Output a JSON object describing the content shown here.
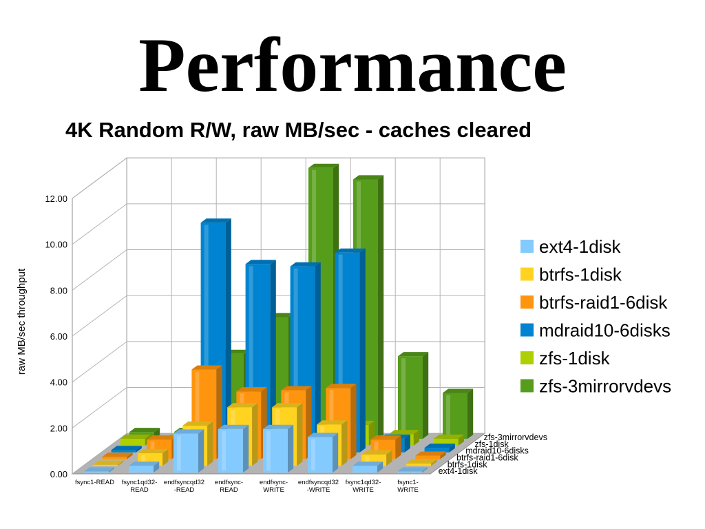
{
  "slide": {
    "title": "Performance"
  },
  "chart_data": {
    "type": "bar",
    "subtype": "3d-grouped-bar",
    "title": "4K Random R/W, raw MB/sec - caches cleared",
    "ylabel": "raw MB/sec throughput",
    "ylim": [
      0,
      12
    ],
    "yticks": [
      "0.00",
      "2.00",
      "4.00",
      "6.00",
      "8.00",
      "10.00",
      "12.00"
    ],
    "grid": true,
    "legend_position": "right",
    "categories": [
      [
        "fsync1-READ"
      ],
      [
        "fsync1qd32-",
        "READ"
      ],
      [
        "endfsyncqd32",
        "-READ"
      ],
      [
        "endfsync-",
        "READ"
      ],
      [
        "endfsync-",
        "WRITE"
      ],
      [
        "endfsyncqd32",
        "-WRITE"
      ],
      [
        "fsync1qd32-",
        "WRITE"
      ],
      [
        "fsync1-",
        "WRITE"
      ]
    ],
    "series": [
      {
        "name": "ext4-1disk",
        "color": "#83caff",
        "values": [
          0.05,
          0.3,
          1.7,
          1.9,
          1.9,
          1.55,
          0.3,
          0.05
        ]
      },
      {
        "name": "btrfs-1disk",
        "color": "#ffd320",
        "values": [
          0.05,
          0.55,
          1.75,
          2.55,
          2.55,
          1.8,
          0.5,
          0.1
        ]
      },
      {
        "name": "btrfs-raid1-6disk",
        "color": "#ff950e",
        "values": [
          0.1,
          0.85,
          3.9,
          2.95,
          3.0,
          3.1,
          0.85,
          0.15
        ]
      },
      {
        "name": "mdraid10-6disks",
        "color": "#0084d1",
        "values": [
          0.1,
          0.2,
          10.0,
          8.2,
          8.1,
          8.7,
          0.6,
          0.2
        ]
      },
      {
        "name": "zfs-1disk",
        "color": "#aecf00",
        "values": [
          0.3,
          0.3,
          0.35,
          0.55,
          0.55,
          0.9,
          0.5,
          0.3
        ]
      },
      {
        "name": "zfs-3mirrorvdevs",
        "color": "#579d1c",
        "values": [
          0.3,
          0.3,
          3.7,
          5.3,
          11.8,
          11.3,
          3.6,
          2.0
        ]
      }
    ]
  }
}
